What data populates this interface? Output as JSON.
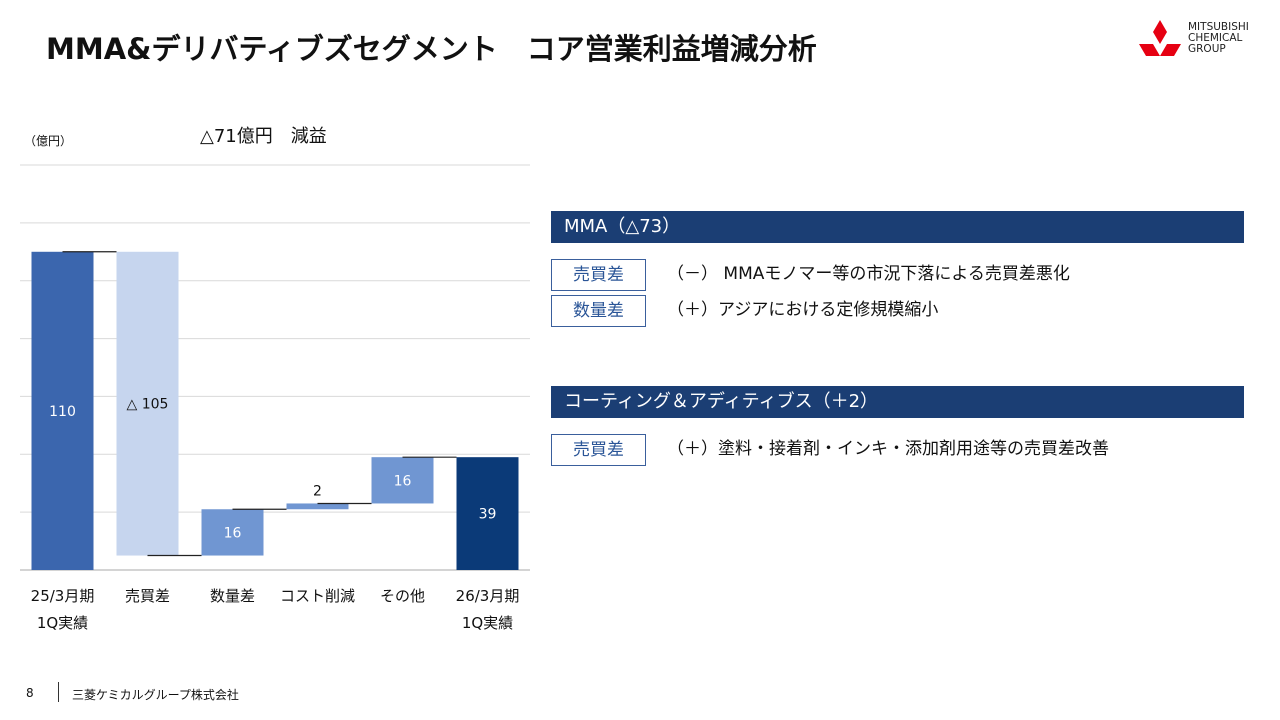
{
  "title": "MMA&デリバティブズセグメント　コア営業利益増減分析",
  "logo": [
    "MITSUBISHI",
    "CHEMICAL",
    "GROUP"
  ],
  "chart_data": {
    "type": "waterfall",
    "unit": "（億円）",
    "annotation": "△71億円　減益",
    "categories": [
      "25/3月期\n1Q実績",
      "売買差",
      "数量差",
      "コスト削減",
      "その他",
      "26/3月期\n1Q実績"
    ],
    "values": [
      110,
      -105,
      16,
      2,
      16,
      39
    ],
    "value_labels": [
      "110",
      "△ 105",
      "16",
      "2",
      "16",
      "39"
    ],
    "colors": [
      "#3b66ae",
      "#c6d5ee",
      "#7096d2",
      "#7096d2",
      "#7096d2",
      "#0b3a78"
    ],
    "ylim": [
      0,
      140
    ],
    "yticks": [
      0,
      20,
      40,
      60,
      80,
      100,
      120,
      140
    ],
    "grid": true
  },
  "sections": [
    {
      "heading": "MMA（△73）",
      "rows": [
        {
          "tag": "売買差",
          "text": "（－） MMAモノマー等の市況下落による売買差悪化"
        },
        {
          "tag": "数量差",
          "text": "（＋）アジアにおける定修規模縮小"
        }
      ]
    },
    {
      "heading": "コーティング＆アディティブス（＋2）",
      "rows": [
        {
          "tag": "売買差",
          "text": "（＋）塗料・接着剤・インキ・添加剤用途等の売買差改善"
        }
      ]
    }
  ],
  "footer": {
    "page": "8",
    "company": "三菱ケミカルグループ株式会社"
  }
}
